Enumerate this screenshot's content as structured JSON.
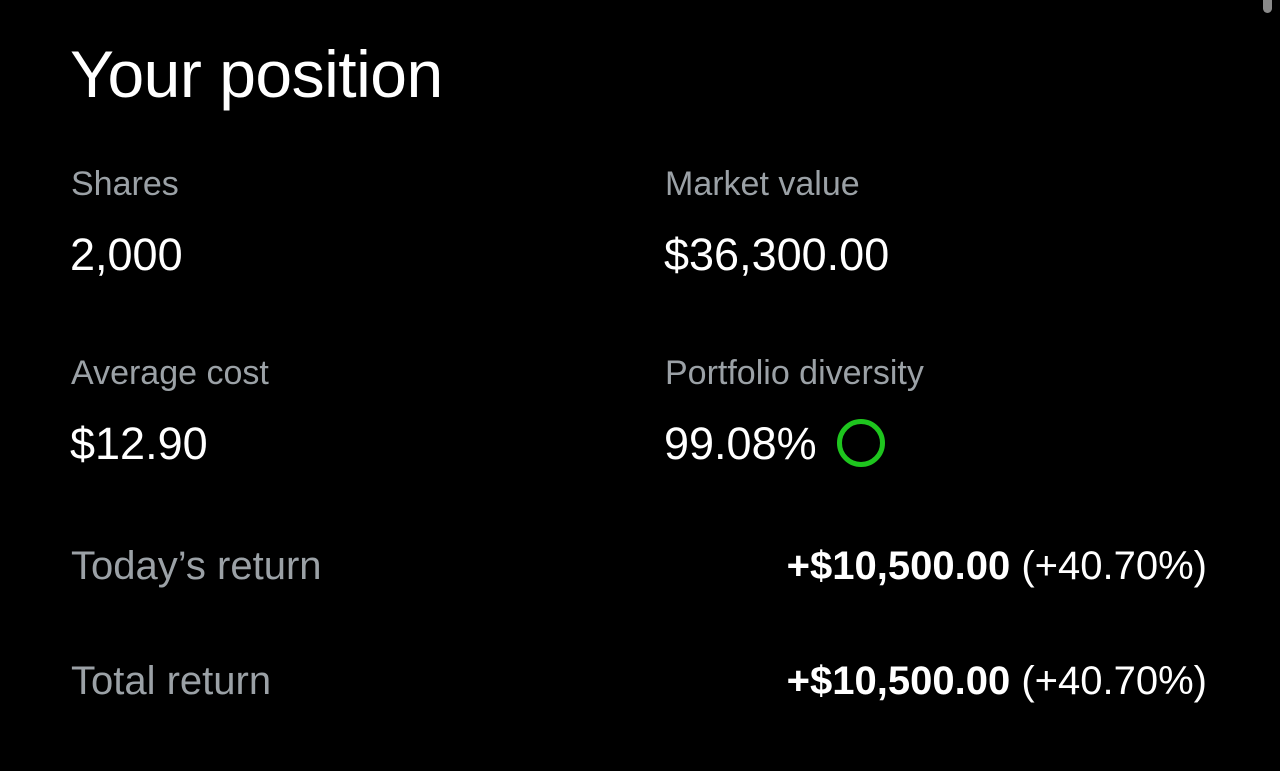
{
  "title": "Your position",
  "stats": {
    "shares": {
      "label": "Shares",
      "value": "2,000"
    },
    "market_value": {
      "label": "Market value",
      "value": "$36,300.00"
    },
    "average_cost": {
      "label": "Average cost",
      "value": "$12.90"
    },
    "portfolio_diversity": {
      "label": "Portfolio diversity",
      "value": "99.08%",
      "indicator_icon": "circle-ring-icon",
      "indicator_color": "#1ec51e"
    }
  },
  "returns": {
    "today": {
      "label": "Today’s return",
      "amount": "+$10,500.00",
      "percent": "(+40.70%)"
    },
    "total": {
      "label": "Total return",
      "amount": "+$10,500.00",
      "percent": "(+40.70%)"
    }
  }
}
